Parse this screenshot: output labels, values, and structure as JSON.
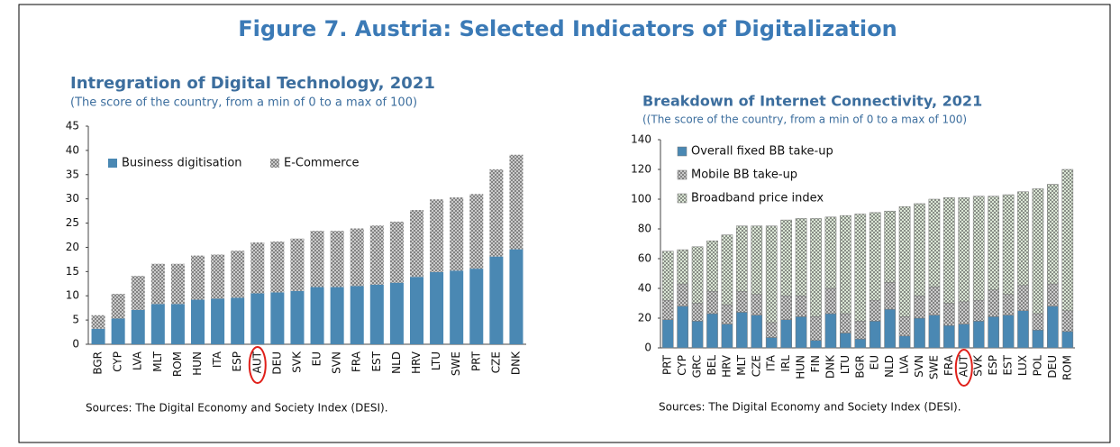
{
  "title": "Figure 7. Austria: Selected Indicators of Digitalization",
  "chart_data": [
    {
      "type": "bar",
      "stacked": true,
      "title": "Intregration of Digital Technology, 2021",
      "subtitle": "(The score of the country, from a min of 0 to a max of 100)",
      "note": "Sources: The Digital Economy and Society Index (DESI).",
      "categories": [
        "BGR",
        "CYP",
        "LVA",
        "MLT",
        "ROM",
        "HUN",
        "ITA",
        "ESP",
        "AUT",
        "DEU",
        "SVK",
        "EU",
        "SVN",
        "FRA",
        "EST",
        "NLD",
        "HRV",
        "LTU",
        "SWE",
        "PRT",
        "CZE",
        "DNK"
      ],
      "series": [
        {
          "name": "Business digitisation",
          "color": "#4a88b3",
          "pattern": false,
          "values": [
            3.2,
            5.3,
            7.1,
            8.3,
            8.3,
            9.2,
            9.4,
            9.6,
            10.5,
            10.7,
            11.0,
            11.8,
            11.8,
            12.0,
            12.3,
            12.7,
            13.9,
            14.9,
            15.2,
            15.6,
            18.1,
            19.6
          ]
        },
        {
          "name": "E-Commerce",
          "color": "#d4d4d4",
          "pattern": true,
          "values": [
            2.8,
            5.1,
            7.0,
            8.3,
            8.3,
            9.1,
            9.1,
            9.7,
            10.5,
            10.5,
            10.8,
            11.6,
            11.6,
            11.9,
            12.2,
            12.6,
            13.8,
            15.0,
            15.1,
            15.4,
            18.0,
            19.5
          ]
        }
      ],
      "ylim": [
        0,
        45
      ],
      "yticks": [
        0,
        5,
        10,
        15,
        20,
        25,
        30,
        35,
        40,
        45
      ]
    },
    {
      "type": "bar",
      "stacked": true,
      "title": "Breakdown of Internet Connectivity, 2021",
      "subtitle": "((The score of the country, from a min of 0 to a max of 100)",
      "note": "Sources: The Digital Economy and Society Index (DESI).",
      "categories": [
        "PRT",
        "CYP",
        "GRC",
        "BEL",
        "HRV",
        "MLT",
        "CZE",
        "ITA",
        "IRL",
        "HUN",
        "FIN",
        "DNK",
        "LTU",
        "BGR",
        "EU",
        "NLD",
        "LVA",
        "SVN",
        "SWE",
        "FRA",
        "AUT",
        "SVK",
        "ESP",
        "EST",
        "LUX",
        "POL",
        "DEU",
        "ROM"
      ],
      "series": [
        {
          "name": "Overall fixed BB take-up",
          "color": "#4a88b3",
          "pattern": false,
          "values": [
            19,
            28,
            18,
            23,
            16,
            24,
            22,
            7,
            19,
            21,
            5,
            23,
            10,
            6,
            18,
            26,
            8,
            20,
            22,
            15,
            16,
            18,
            21,
            22,
            25,
            12,
            28,
            11
          ]
        },
        {
          "name": "Mobile BB take-up",
          "color": "#d4d4d4",
          "pattern": true,
          "values": [
            13,
            15,
            12,
            15,
            13,
            14,
            14,
            10,
            16,
            14,
            16,
            17,
            13,
            12,
            14,
            18,
            13,
            15,
            19,
            15,
            15,
            14,
            18,
            14,
            17,
            11,
            15,
            14
          ]
        },
        {
          "name": "Broadband price index",
          "color": "#e4f1de",
          "pattern": true,
          "values": [
            33,
            23,
            38,
            34,
            47,
            44,
            46,
            65,
            51,
            52,
            66,
            48,
            66,
            72,
            59,
            48,
            74,
            62,
            59,
            71,
            70,
            70,
            63,
            67,
            63,
            84,
            67,
            95
          ]
        }
      ],
      "ylim": [
        0,
        140
      ],
      "yticks": [
        0,
        20,
        40,
        60,
        80,
        100,
        120,
        140
      ]
    }
  ]
}
